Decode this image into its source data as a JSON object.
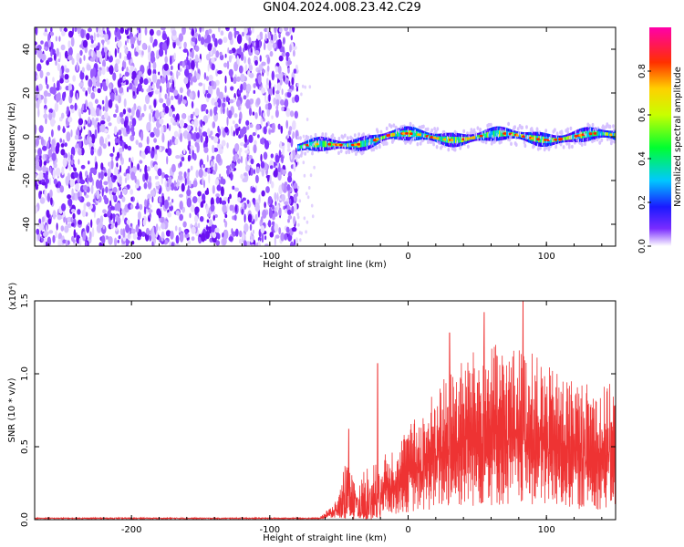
{
  "title": "GN04.2024.008.23.42.C29",
  "chart_data": [
    {
      "type": "heatmap",
      "xlabel": "Height of straight line (km)",
      "ylabel": "Frequency (Hz)",
      "xlim": [
        -270,
        150
      ],
      "ylim": [
        -50,
        50
      ],
      "x_ticks": [
        -200,
        -100,
        0,
        100
      ],
      "y_ticks": [
        -40,
        -20,
        0,
        20,
        40
      ],
      "noise_region_x": [
        -270,
        -80
      ],
      "signal_band_x": [
        -80,
        150
      ],
      "signal_center_freq_hz": 0,
      "colorbar": {
        "label": "Normalized spectral amplitude",
        "range": [
          0.0,
          1.0
        ],
        "ticks": [
          "0.0",
          "0.2",
          "0.4",
          "0.6",
          "0.8"
        ],
        "colors": [
          "#ffffff",
          "#5500ff",
          "#0000ff",
          "#00d0ff",
          "#00ff40",
          "#ffff00",
          "#ff8000",
          "#ff0000",
          "#ff00aa"
        ]
      },
      "grid": false
    },
    {
      "type": "line",
      "xlabel": "Height of straight line (km)",
      "ylabel": "SNR (10 * v/v)",
      "y_multiplier": "(x10⁴)",
      "xlim": [
        -270,
        150
      ],
      "ylim": [
        0.0,
        1.5
      ],
      "x_ticks": [
        -200,
        -100,
        0,
        100
      ],
      "y_ticks": [
        "0.0",
        "0.5",
        "1.0",
        "1.5"
      ],
      "line_color": "#ee3333",
      "series": [
        {
          "x": [
            -270,
            -200,
            -100,
            -65,
            -55,
            -50,
            -46,
            -40,
            -30,
            -20,
            -15,
            -10,
            0,
            10,
            20,
            30,
            40,
            50,
            60,
            70,
            80,
            90,
            100,
            110,
            120,
            130,
            140,
            150
          ],
          "y": [
            0.0,
            0.0,
            0.0,
            0.01,
            0.07,
            0.12,
            0.3,
            0.22,
            0.27,
            0.3,
            0.35,
            0.38,
            0.48,
            0.55,
            0.68,
            0.75,
            0.82,
            0.87,
            0.9,
            0.87,
            0.88,
            0.85,
            0.78,
            0.75,
            0.72,
            0.7,
            0.68,
            0.7
          ],
          "peak_values": [
            [
              -43,
              0.62
            ],
            [
              -22,
              1.07
            ],
            [
              30,
              1.28
            ],
            [
              55,
              1.42
            ],
            [
              83,
              1.5
            ]
          ]
        }
      ],
      "grid": false
    }
  ]
}
